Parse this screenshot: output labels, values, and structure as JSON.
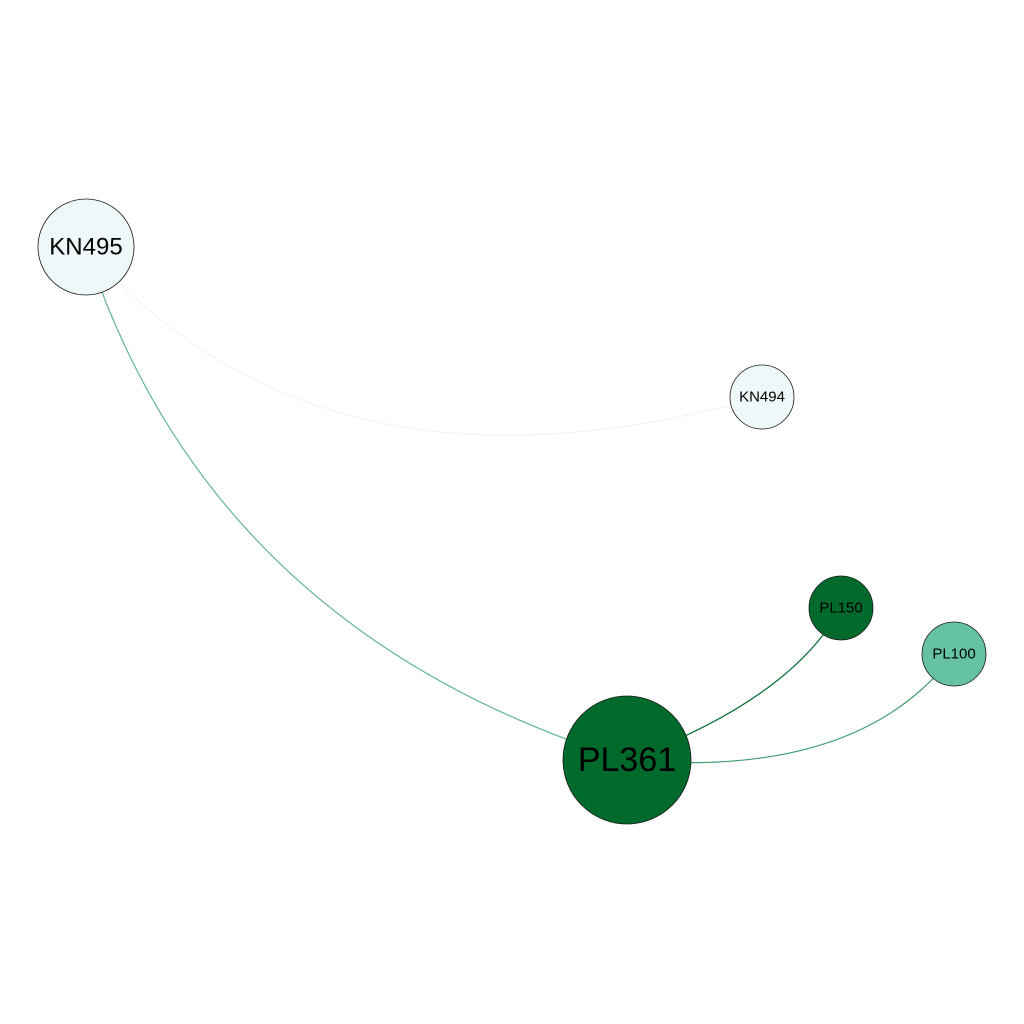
{
  "graph": {
    "nodes": [
      {
        "id": "KN495",
        "label": "KN495",
        "fill": "#eef8f9"
      },
      {
        "id": "KN494",
        "label": "KN494",
        "fill": "#eef8f9"
      },
      {
        "id": "PL150",
        "label": "PL150",
        "fill": "#006a2d"
      },
      {
        "id": "PL100",
        "label": "PL100",
        "fill": "#66c2a5"
      },
      {
        "id": "PL361",
        "label": "PL361",
        "fill": "#006a2d"
      }
    ],
    "edges": [
      {
        "source": "KN495",
        "target": "PL361",
        "color": "#66b596"
      },
      {
        "source": "KN495",
        "target": "KN494",
        "color": "#eef4f0"
      },
      {
        "source": "PL150",
        "target": "PL361",
        "color": "#006a2d"
      },
      {
        "source": "PL100",
        "target": "PL361",
        "color": "#3f9e6e"
      }
    ]
  }
}
